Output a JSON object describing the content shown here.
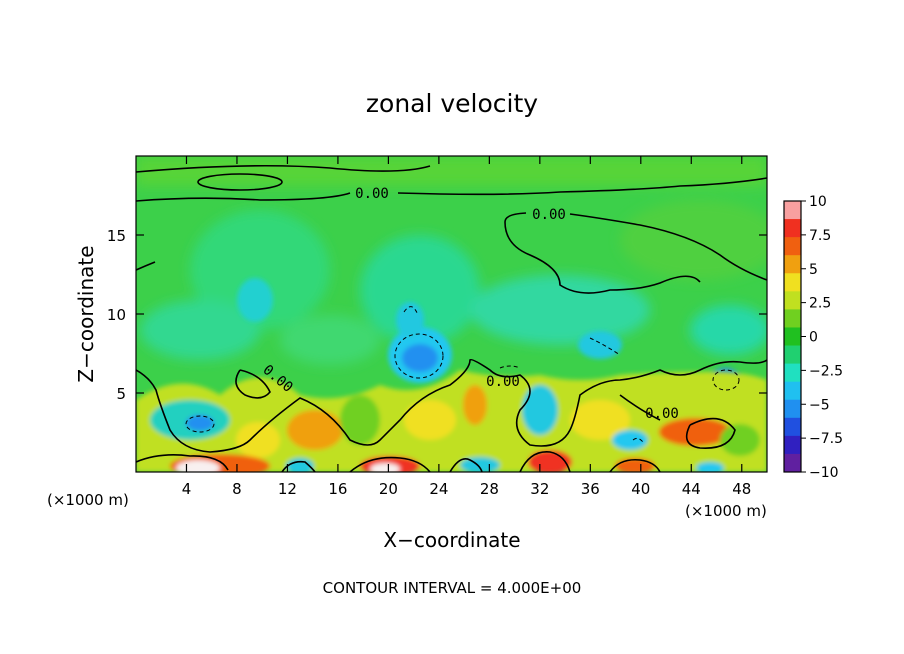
{
  "chart_data": {
    "type": "heatmap",
    "title": "zonal velocity",
    "xlabel": "X−coordinate",
    "ylabel": "Z−coordinate",
    "x_unit_left": "(×1000 m)",
    "x_unit_right": "(×1000 m)",
    "footer": "CONTOUR INTERVAL = 4.000E+00",
    "xlim": [
      0,
      50
    ],
    "ylim": [
      0,
      20
    ],
    "x_ticks": [
      "4",
      "8",
      "12",
      "16",
      "20",
      "24",
      "28",
      "32",
      "36",
      "40",
      "44",
      "48"
    ],
    "y_ticks": [
      "5",
      "10",
      "15"
    ],
    "contour_labels": [
      "0.00",
      "0.00",
      "0.00",
      "0.00",
      "0.00"
    ],
    "colorbar": {
      "ticks": [
        "10",
        "7.5",
        "5",
        "2.5",
        "0",
        "−2.5",
        "−5",
        "−7.5",
        "−10"
      ],
      "range": [
        -10,
        10
      ],
      "colors": [
        "#f8a0a0",
        "#f03020",
        "#f06010",
        "#f0a010",
        "#f0e020",
        "#c0e020",
        "#70d020",
        "#20c020",
        "#20d070",
        "#20e0c0",
        "#20c0f0",
        "#2090f0",
        "#2050e0",
        "#3020c0",
        "#6020a0"
      ]
    }
  }
}
